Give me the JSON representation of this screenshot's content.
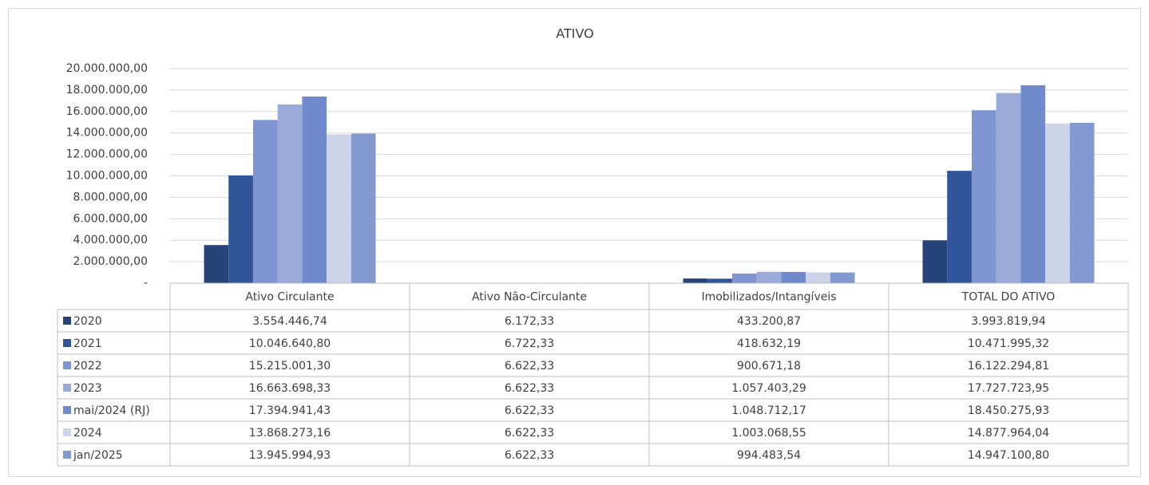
{
  "chart_data": {
    "type": "bar",
    "title": "ATIVO",
    "categories": [
      "Ativo Circulante",
      "Ativo Não-Circulante",
      "Imobilizados/Intangíveis",
      "TOTAL DO ATIVO"
    ],
    "ylim": [
      0,
      20000000
    ],
    "yticks": [
      {
        "value": 0,
        "label": "-"
      },
      {
        "value": 2000000,
        "label": "2.000.000,00"
      },
      {
        "value": 4000000,
        "label": "4.000.000,00"
      },
      {
        "value": 6000000,
        "label": "6.000.000,00"
      },
      {
        "value": 8000000,
        "label": "8.000.000,00"
      },
      {
        "value": 10000000,
        "label": "10.000.000,00"
      },
      {
        "value": 12000000,
        "label": "12.000.000,00"
      },
      {
        "value": 14000000,
        "label": "14.000.000,00"
      },
      {
        "value": 16000000,
        "label": "16.000.000,00"
      },
      {
        "value": 18000000,
        "label": "18.000.000,00"
      },
      {
        "value": 20000000,
        "label": "20.000.000,00"
      }
    ],
    "grid": true,
    "series": [
      {
        "name": "2020",
        "color": "#264478",
        "values": [
          3554446.74,
          6172.33,
          433200.87,
          3993819.94
        ],
        "value_labels": [
          "3.554.446,74",
          "6.172,33",
          "433.200,87",
          "3.993.819,94"
        ]
      },
      {
        "name": "2021",
        "color": "#30559b",
        "values": [
          10046640.8,
          6722.33,
          418632.19,
          10471995.32
        ],
        "value_labels": [
          "10.046.640,80",
          "6.722,33",
          "418.632,19",
          "10.471.995,32"
        ]
      },
      {
        "name": "2022",
        "color": "#7f95d2",
        "values": [
          15215001.3,
          6622.33,
          900671.18,
          16122294.81
        ],
        "value_labels": [
          "15.215.001,30",
          "6.622,33",
          "900.671,18",
          "16.122.294,81"
        ]
      },
      {
        "name": "2023",
        "color": "#9aabd9",
        "values": [
          16663698.33,
          6622.33,
          1057403.29,
          17727723.95
        ],
        "value_labels": [
          "16.663.698,33",
          "6.622,33",
          "1.057.403,29",
          "17.727.723,95"
        ]
      },
      {
        "name": "mai/2024 (RJ)",
        "color": "#708acc",
        "values": [
          17394941.43,
          6622.33,
          1048712.17,
          18450275.93
        ],
        "value_labels": [
          "17.394.941,43",
          "6.622,33",
          "1.048.712,17",
          "18.450.275,93"
        ]
      },
      {
        "name": "2024",
        "color": "#cdd3e8",
        "values": [
          13868273.16,
          6622.33,
          1003068.55,
          14877964.04
        ],
        "value_labels": [
          "13.868.273,16",
          "6.622,33",
          "1.003.068,55",
          "14.877.964,04"
        ]
      },
      {
        "name": "jan/2025",
        "color": "#8599d1",
        "values": [
          13945994.93,
          6622.33,
          994483.54,
          14947100.8
        ],
        "value_labels": [
          "13.945.994,93",
          "6.622,33",
          "994.483,54",
          "14.947.100,80"
        ]
      }
    ]
  }
}
